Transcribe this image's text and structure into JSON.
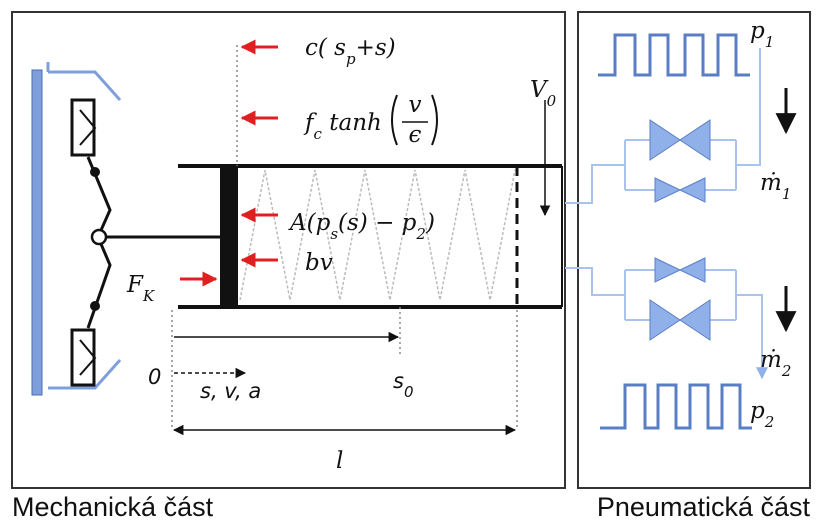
{
  "mechanical": {
    "caption": "Mechanická část",
    "labels": [
      {
        "parts": [
          {
            "text": "c( s"
          },
          {
            "text": "p",
            "sub": true
          },
          {
            "text": "+s)"
          }
        ]
      },
      {
        "parts": [
          {
            "text": "f"
          },
          {
            "text": "c",
            "sub": true
          },
          {
            "text": " tanh"
          }
        ],
        "fraction": {
          "numerator": "v",
          "denominator": "ϵ"
        }
      },
      {
        "parts": [
          {
            "text": "A(p"
          },
          {
            "text": "s",
            "sub": true
          },
          {
            "text": "(s) − p"
          },
          {
            "text": "2",
            "sub": true
          },
          {
            "text": ")"
          }
        ]
      },
      {
        "parts": [
          {
            "text": "bv"
          }
        ]
      },
      {
        "parts": [
          {
            "text": "F"
          },
          {
            "text": "K",
            "sub": true
          }
        ]
      },
      {
        "parts": [
          {
            "text": "V"
          },
          {
            "text": "0",
            "sub": true
          }
        ]
      },
      {
        "parts": [
          {
            "text": "0"
          }
        ]
      },
      {
        "parts": [
          {
            "text": "s, v, a"
          }
        ]
      },
      {
        "parts": [
          {
            "text": "s"
          },
          {
            "text": "0",
            "sub": true
          }
        ]
      },
      {
        "parts": [
          {
            "text": "l"
          }
        ]
      }
    ]
  },
  "pneumatic": {
    "caption": "Pneumatická část",
    "labels": [
      {
        "parts": [
          {
            "text": "p"
          },
          {
            "text": "1",
            "sub": true
          }
        ]
      },
      {
        "parts": [
          {
            "text": "ṁ"
          },
          {
            "text": "1",
            "sub": true
          }
        ]
      },
      {
        "parts": [
          {
            "text": "ṁ"
          },
          {
            "text": "2",
            "sub": true
          }
        ]
      },
      {
        "parts": [
          {
            "text": "p"
          },
          {
            "text": "2",
            "sub": true
          }
        ]
      }
    ]
  }
}
